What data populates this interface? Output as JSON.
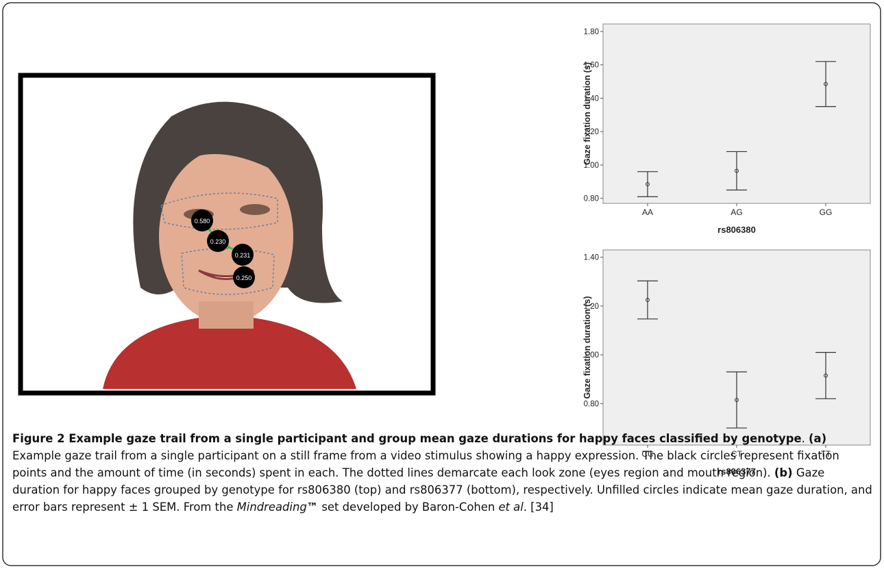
{
  "chart_data": [
    {
      "type": "errorbar",
      "x_label": "rs806380",
      "y_label": "Gaze fixation duration (s)",
      "categories": [
        "AA",
        "AG",
        "GG"
      ],
      "values": [
        0.885,
        0.965,
        1.485
      ],
      "errors": [
        0.075,
        0.115,
        0.135
      ],
      "ylim": [
        0.77,
        1.845
      ],
      "yticks": [
        {
          "value": 0.8,
          "label": "0.80"
        },
        {
          "value": 1.0,
          "label": "1.00"
        },
        {
          "value": 1.2,
          "label": "1.20"
        },
        {
          "value": 1.4,
          "label": "1.40"
        },
        {
          "value": 1.6,
          "label": "1.60"
        },
        {
          "value": 1.8,
          "label": "1.80"
        }
      ],
      "color": "#333333"
    },
    {
      "type": "errorbar",
      "x_label": "rs806377",
      "y_label": "Gaze fixation duration (s)",
      "categories": [
        "CC",
        "CT",
        "TT"
      ],
      "values": [
        1.225,
        0.815,
        0.915
      ],
      "errors": [
        0.078,
        0.115,
        0.095
      ],
      "ylim": [
        0.63,
        1.43
      ],
      "yticks": [
        {
          "value": 0.8,
          "label": "0.80"
        },
        {
          "value": 1.0,
          "label": "1.00"
        },
        {
          "value": 1.2,
          "label": "1.20"
        },
        {
          "value": 1.4,
          "label": "1.40"
        }
      ],
      "color": "#333333"
    }
  ],
  "photo": {
    "fixations": [
      "0.580",
      "0.230",
      "0.231",
      "0.250"
    ]
  },
  "caption": [
    "Figure 2 Example gaze trail from a single participant and group mean gaze durations for happy faces classified by genotype",
    ". ",
    "(a)",
    " Example gaze trail from a single participant on a still frame from a video stimulus showing a happy expression. The black circles represent fixation points and the amount of time (in seconds) spent in each. The dotted lines demarcate each look zone (eyes region and mouth region). ",
    "(b)",
    " Gaze duration for happy faces grouped by genotype for rs806380 (top) and rs806377 (bottom), respectively. Unfilled circles indicate mean gaze duration, and error bars represent ± 1 SEM. From the ",
    "Mindreading",
    "™",
    " set developed by Baron-Cohen ",
    "et al",
    ". [34]"
  ]
}
